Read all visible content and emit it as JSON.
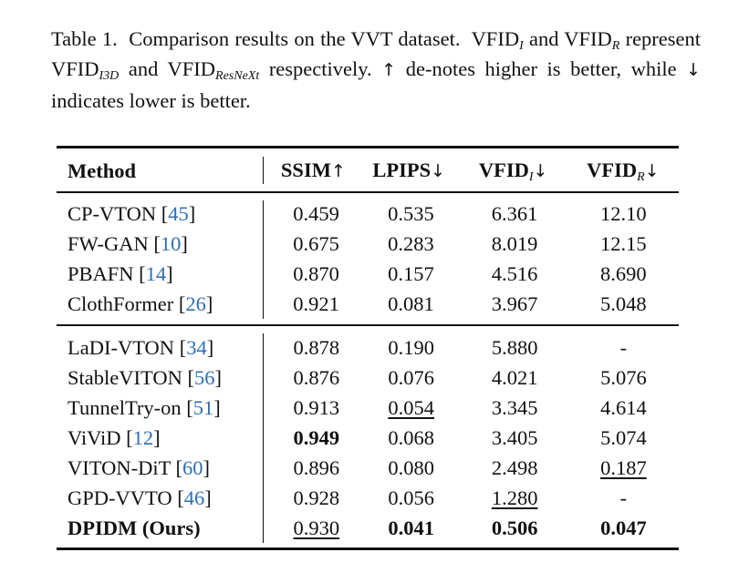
{
  "caption": {
    "label": "Table 1.",
    "text1": "Comparison results on the VVT dataset.",
    "vfid": "VFID",
    "sub_i": "I",
    "and": "and",
    "sub_r": "R",
    "represent": "represent",
    "sub_i3d": "I3D",
    "sub_resnext": "ResNeXt",
    "respectively": "respectively.",
    "up_arrow": "↑",
    "text2": "de-notes higher is better, while",
    "down_arrow": "↓",
    "text3": "indicates lower is better."
  },
  "table": {
    "headers": {
      "method": "Method",
      "ssim": "SSIM",
      "lpips": "LPIPS",
      "vfid": "VFID",
      "sub_i": "I",
      "sub_r": "R",
      "up": "↑",
      "down": "↓"
    },
    "group1": [
      {
        "name": "CP-VTON",
        "ref": "45",
        "ssim": "0.459",
        "lpips": "0.535",
        "vfid_i": "6.361",
        "vfid_r": "12.10"
      },
      {
        "name": "FW-GAN",
        "ref": "10",
        "ssim": "0.675",
        "lpips": "0.283",
        "vfid_i": "8.019",
        "vfid_r": "12.15"
      },
      {
        "name": "PBAFN",
        "ref": "14",
        "ssim": "0.870",
        "lpips": "0.157",
        "vfid_i": "4.516",
        "vfid_r": "8.690"
      },
      {
        "name": "ClothFormer",
        "ref": "26",
        "ssim": "0.921",
        "lpips": "0.081",
        "vfid_i": "3.967",
        "vfid_r": "5.048"
      }
    ],
    "group2": [
      {
        "name": "LaDI-VTON",
        "ref": "34",
        "ssim": "0.878",
        "lpips": "0.190",
        "vfid_i": "5.880",
        "vfid_r": "-"
      },
      {
        "name": "StableVITON",
        "ref": "56",
        "ssim": "0.876",
        "lpips": "0.076",
        "vfid_i": "4.021",
        "vfid_r": "5.076"
      },
      {
        "name": "TunnelTry-on",
        "ref": "51",
        "ssim": "0.913",
        "lpips": "0.054",
        "vfid_i": "3.345",
        "vfid_r": "4.614"
      },
      {
        "name": "ViViD",
        "ref": "12",
        "ssim": "0.949",
        "lpips": "0.068",
        "vfid_i": "3.405",
        "vfid_r": "5.074"
      },
      {
        "name": "VITON-DiT",
        "ref": "60",
        "ssim": "0.896",
        "lpips": "0.080",
        "vfid_i": "2.498",
        "vfid_r": "0.187"
      },
      {
        "name": "GPD-VVTO",
        "ref": "46",
        "ssim": "0.928",
        "lpips": "0.056",
        "vfid_i": "1.280",
        "vfid_r": "-"
      },
      {
        "name": "DPIDM (Ours)",
        "ref": "",
        "ssim": "0.930",
        "lpips": "0.041",
        "vfid_i": "0.506",
        "vfid_r": "0.047"
      }
    ]
  }
}
